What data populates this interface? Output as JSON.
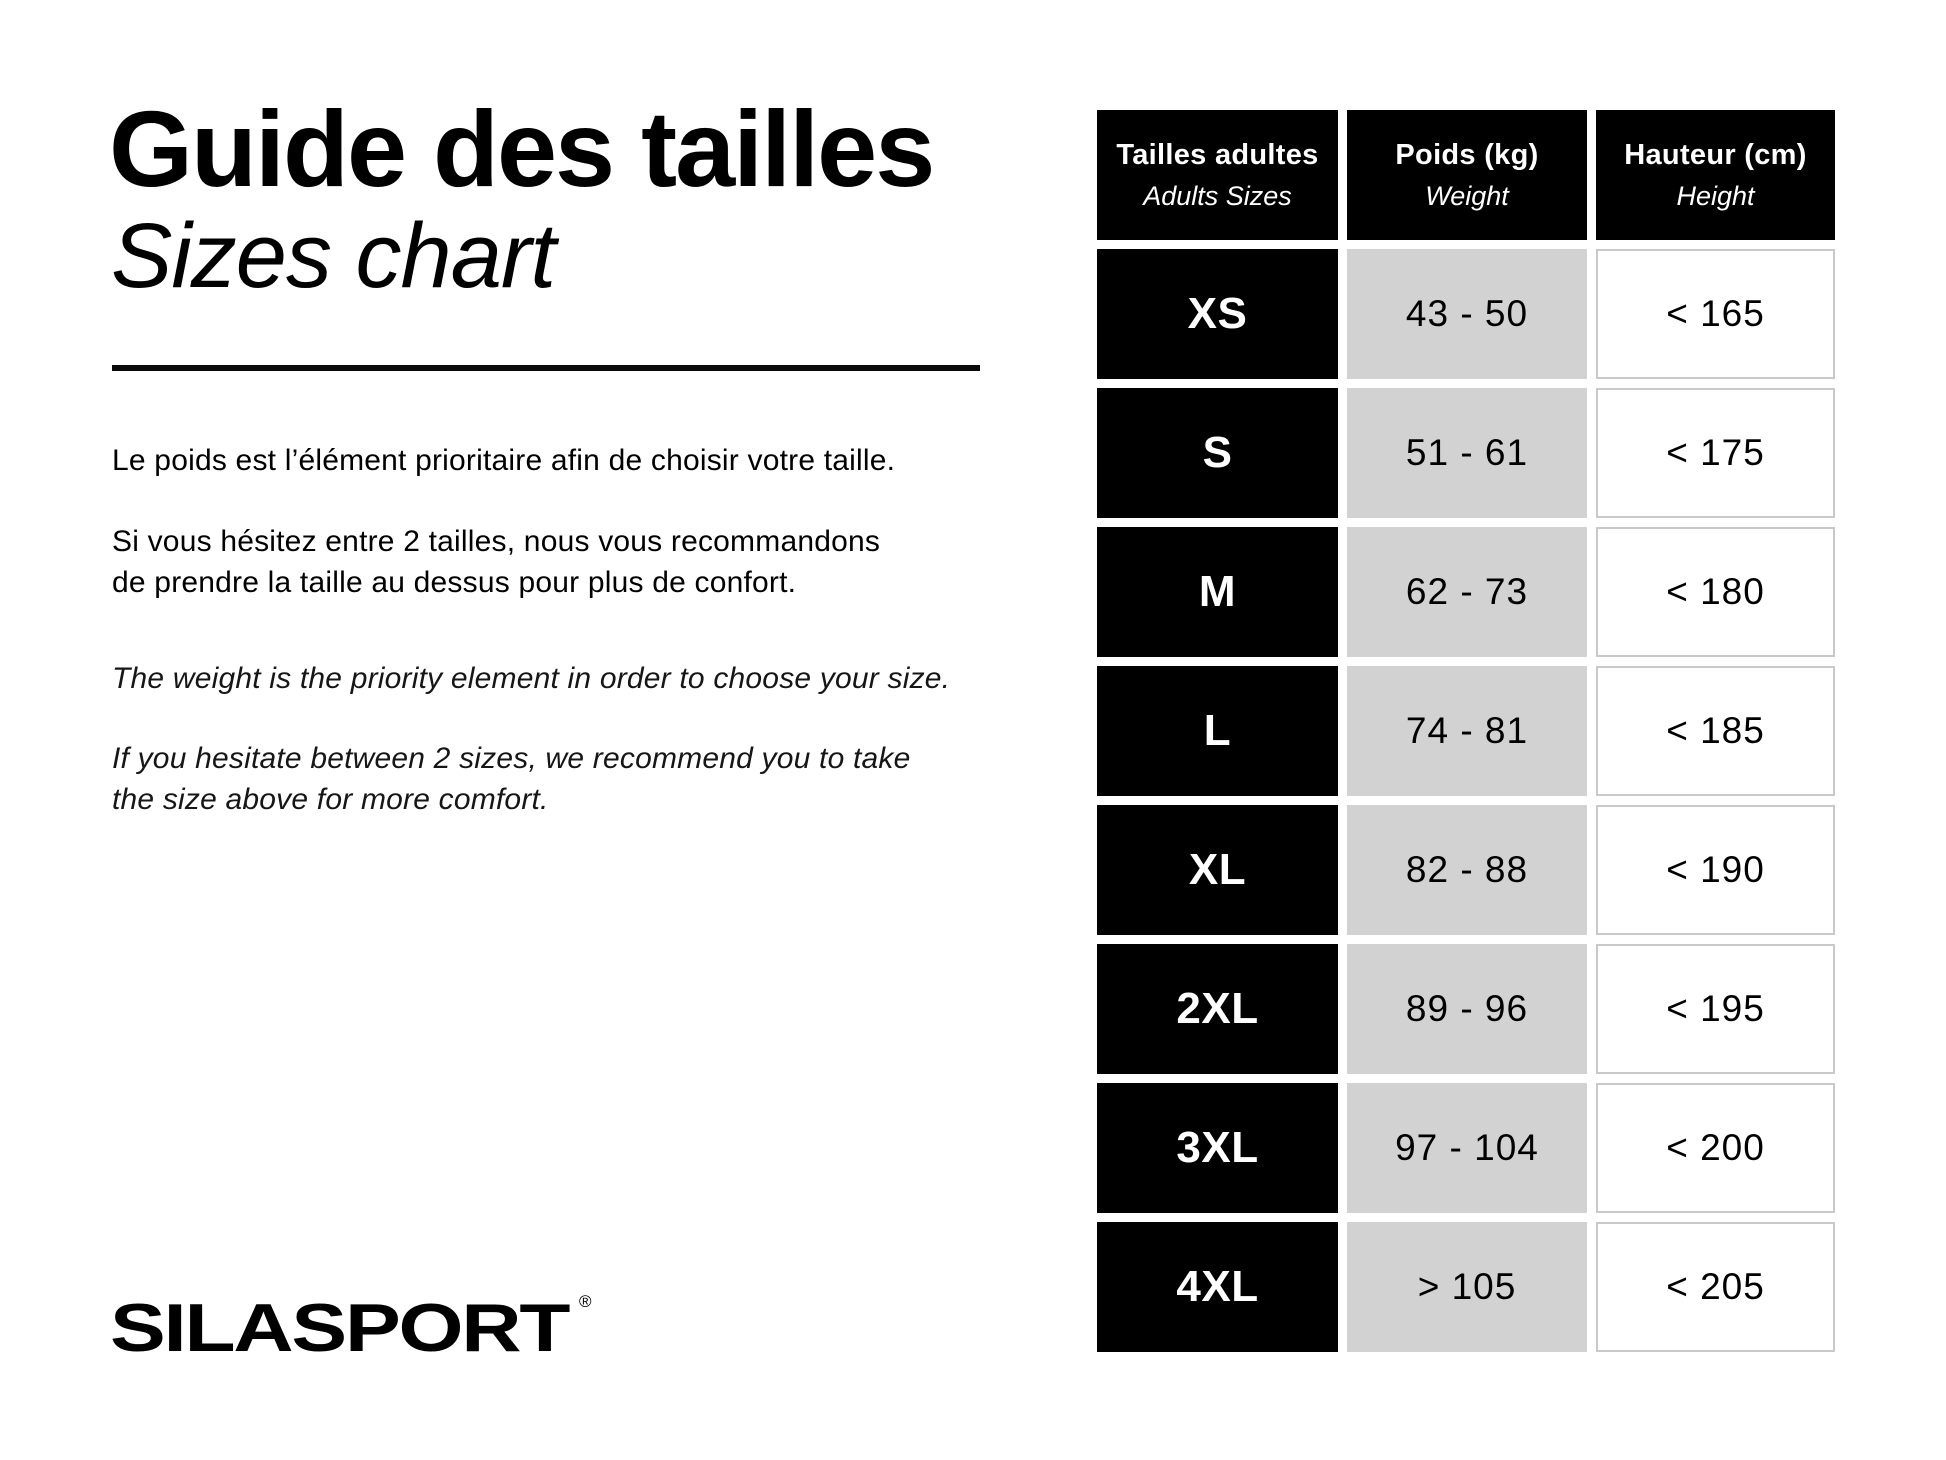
{
  "left": {
    "title_fr": "Guide des tailles",
    "title_en": "Sizes chart",
    "fr_paragraph_1": "Le poids est l’élément prioritaire afin de choisir votre taille.",
    "fr_paragraph_2_lines": [
      "Si vous hésitez entre 2 tailles, nous vous recommandons",
      "de prendre la taille au dessus pour plus de confort."
    ],
    "en_paragraph_1": "The weight is the priority element in order to choose your size.",
    "en_paragraph_2_lines": [
      "If you hesitate between 2 sizes, we recommend you to take",
      "the size above for more comfort."
    ],
    "logo_text": "SILASPORT",
    "logo_reg_mark": "®"
  },
  "table": {
    "columns": [
      {
        "title_fr": "Tailles adultes",
        "title_en": "Adults Sizes"
      },
      {
        "title_fr": "Poids (kg)",
        "title_en": "Weight"
      },
      {
        "title_fr": "Hauteur (cm)",
        "title_en": "Height"
      }
    ],
    "rows": [
      {
        "size": "XS",
        "weight_kg": "43 - 50",
        "height_cm": "< 165"
      },
      {
        "size": "S",
        "weight_kg": "51 - 61",
        "height_cm": "< 175"
      },
      {
        "size": "M",
        "weight_kg": "62 - 73",
        "height_cm": "< 180"
      },
      {
        "size": "L",
        "weight_kg": "74 - 81",
        "height_cm": "< 185"
      },
      {
        "size": "XL",
        "weight_kg": "82 - 88",
        "height_cm": "< 190"
      },
      {
        "size": "2XL",
        "weight_kg": "89 - 96",
        "height_cm": "< 195"
      },
      {
        "size": "3XL",
        "weight_kg": "97 - 104",
        "height_cm": "< 200"
      },
      {
        "size": "4XL",
        "weight_kg": "> 105",
        "height_cm": "< 205"
      }
    ]
  },
  "chart_data": {
    "type": "table",
    "title": "Guide des tailles / Sizes chart",
    "columns": [
      "Tailles adultes / Adults Sizes",
      "Poids (kg) / Weight",
      "Hauteur (cm) / Height"
    ],
    "rows": [
      [
        "XS",
        "43 - 50",
        "< 165"
      ],
      [
        "S",
        "51 - 61",
        "< 175"
      ],
      [
        "M",
        "62 - 73",
        "< 180"
      ],
      [
        "L",
        "74 - 81",
        "< 185"
      ],
      [
        "XL",
        "82 - 88",
        "< 190"
      ],
      [
        "2XL",
        "89 - 96",
        "< 195"
      ],
      [
        "3XL",
        "97 - 104",
        "< 200"
      ],
      [
        "4XL",
        "> 105",
        "< 205"
      ]
    ]
  },
  "colors": {
    "background": "#ffffff",
    "cell_black": "#000000",
    "cell_gray": "#d2d2d2",
    "white_cell_border": "#c9c9c9",
    "text": "#000000"
  }
}
